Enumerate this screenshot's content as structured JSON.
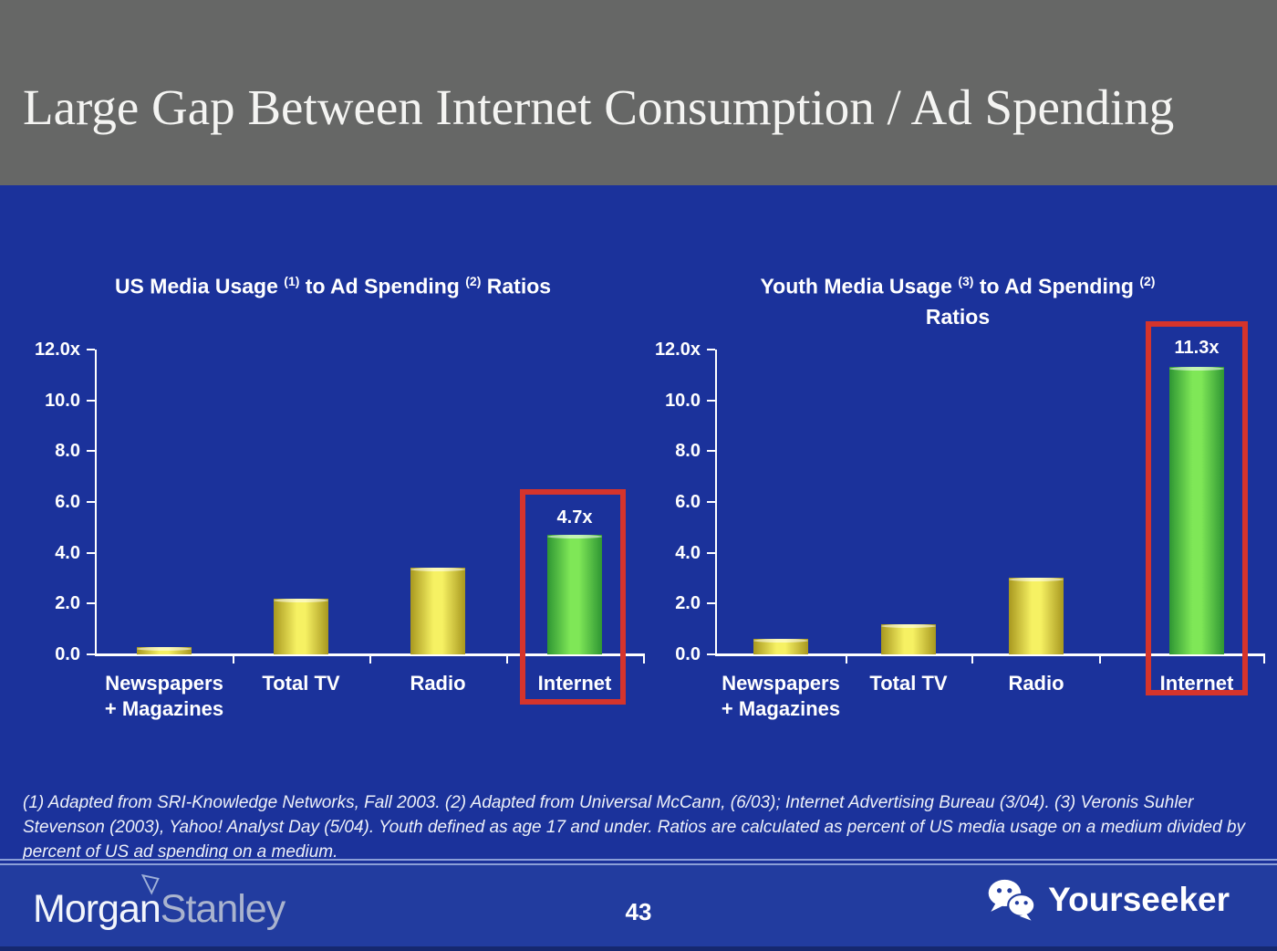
{
  "slide": {
    "title": "Large Gap Between Internet Consumption / Ad Spending"
  },
  "charts_meta": {
    "left": {
      "t1": "US Media Usage ",
      "s1": "(1)",
      "t2": " to Ad Spending ",
      "s2": "(2)",
      "t3": " Ratios"
    },
    "right": {
      "t1": "Youth Media Usage ",
      "s1": "(3)",
      "t2": " to Ad Spending ",
      "s2": "(2)",
      "line2": "Ratios"
    }
  },
  "chart_data": [
    {
      "type": "bar",
      "title": "US Media Usage (1) to Ad Spending (2) Ratios",
      "categories": [
        [
          "Newspapers",
          "+ Magazines"
        ],
        [
          "Total TV"
        ],
        [
          "Radio"
        ],
        [
          "Internet"
        ]
      ],
      "values": [
        0.3,
        2.2,
        3.4,
        4.7
      ],
      "bar_colors": [
        "yellow",
        "yellow",
        "yellow",
        "green"
      ],
      "data_labels": [
        "",
        "",
        "",
        "4.7x"
      ],
      "yticks": [
        "12.0x",
        "10.0",
        "8.0",
        "6.0",
        "4.0",
        "2.0",
        "0.0"
      ],
      "ylim": [
        0,
        12
      ],
      "grid": false,
      "legend": "none",
      "highlighted_category": "Internet"
    },
    {
      "type": "bar",
      "title": "Youth Media Usage (3) to Ad Spending (2) Ratios",
      "categories": [
        [
          "Newspapers",
          "+ Magazines"
        ],
        [
          "Total TV"
        ],
        [
          "Radio"
        ],
        [
          "Internet"
        ]
      ],
      "values": [
        0.6,
        1.2,
        3.0,
        11.3
      ],
      "bar_colors": [
        "yellow",
        "yellow",
        "yellow",
        "green"
      ],
      "data_labels": [
        "",
        "",
        "",
        "11.3x"
      ],
      "yticks": [
        "12.0x",
        "10.0",
        "8.0",
        "6.0",
        "4.0",
        "2.0",
        "0.0"
      ],
      "ylim": [
        0,
        12
      ],
      "grid": false,
      "legend": "none",
      "highlighted_category": "Internet"
    }
  ],
  "footnote": "(1) Adapted from SRI-Knowledge Networks, Fall 2003.  (2) Adapted from Universal McCann, (6/03); Internet Advertising Bureau (3/04). (3) Veronis Suhler Stevenson (2003), Yahoo! Analyst Day (5/04).  Youth defined as age 17 and under.  Ratios are calculated as percent of US media usage on a medium divided by percent of US ad spending on a medium.",
  "footer": {
    "logo_part1": "Morgan",
    "logo_part2": "Stanley",
    "page": "43",
    "brand": "Yourseeker"
  },
  "icons": {
    "wechat": "wechat-icon",
    "morgan_stanley_triangle": "morgan-stanley-triangle-icon"
  },
  "colors": {
    "header_bg": "#666766",
    "body_bg": "#1b329b",
    "footer_bg": "#223c9f",
    "highlight_red": "#d5342c",
    "bar_yellow_center": "#f6f163",
    "bar_yellow_edge": "#a8981f",
    "bar_green_center": "#7fe757",
    "bar_green_edge": "#2e9633",
    "axis_white": "#ffffff",
    "stanley_text": "#a9b3ce"
  }
}
